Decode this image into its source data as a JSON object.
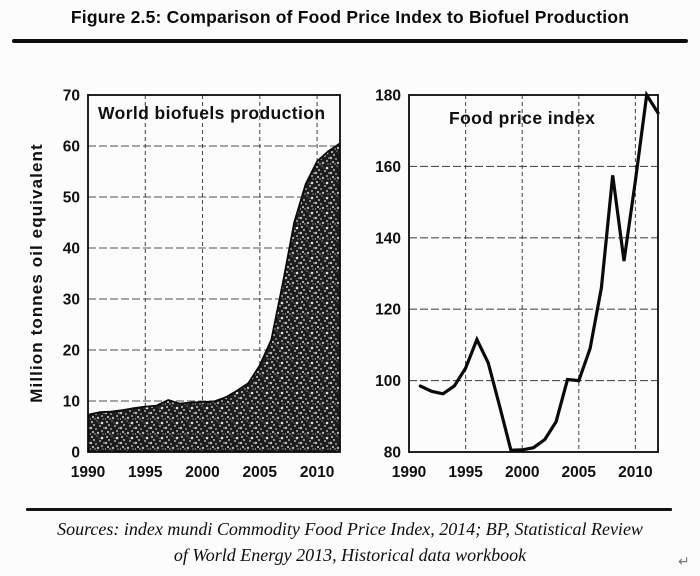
{
  "figure": {
    "title": "Figure 2.5: Comparison of Food Price Index to Biofuel Production",
    "sources_line1": "Sources: index mundi Commodity Food Price Index, 2014; BP, Statistical Review",
    "sources_line2": "of World Energy 2013, Historical data workbook",
    "return_mark": "↵"
  },
  "colors": {
    "ink": "#0d0d0d",
    "paper": "#fcfcfc",
    "area_fill_base": "#1c1c1c"
  },
  "chart_data": [
    {
      "type": "area",
      "title": "World biofuels production",
      "xlabel": "",
      "ylabel": "Million tonnes oil equivalent",
      "xlim": [
        1990,
        2012
      ],
      "ylim": [
        0,
        70
      ],
      "xticks": [
        1990,
        1995,
        2000,
        2005,
        2010
      ],
      "yticks": [
        0,
        10,
        20,
        30,
        40,
        50,
        60,
        70
      ],
      "grid": true,
      "fill_style": "stippled-black",
      "x": [
        1990,
        1991,
        1992,
        1993,
        1994,
        1995,
        1996,
        1997,
        1998,
        1999,
        2000,
        2001,
        2002,
        2003,
        2004,
        2005,
        2006,
        2007,
        2008,
        2009,
        2010,
        2011,
        2012
      ],
      "values": [
        7.3,
        7.8,
        7.9,
        8.2,
        8.6,
        8.9,
        9.1,
        10.2,
        9.5,
        9.7,
        9.8,
        9.9,
        10.7,
        12.0,
        13.5,
        17.0,
        22.0,
        33.0,
        45.0,
        52.5,
        57.0,
        59.0,
        60.5
      ]
    },
    {
      "type": "line",
      "title": "Food price index",
      "xlabel": "",
      "ylabel": "",
      "xlim": [
        1990,
        2012
      ],
      "ylim": [
        80,
        180
      ],
      "xticks": [
        1990,
        1995,
        2000,
        2005,
        2010
      ],
      "yticks": [
        80,
        100,
        120,
        140,
        160,
        180
      ],
      "grid": true,
      "x": [
        1991,
        1992,
        1993,
        1994,
        1995,
        1996,
        1997,
        1998,
        1999,
        2000,
        2001,
        2002,
        2003,
        2004,
        2005,
        2006,
        2007,
        2008,
        2009,
        2010,
        2011,
        2012
      ],
      "values": [
        98.5,
        97.0,
        96.3,
        98.5,
        103.5,
        111.5,
        105.0,
        93.0,
        80.5,
        80.6,
        81.2,
        83.5,
        88.5,
        100.3,
        100.0,
        109.0,
        126.0,
        157.5,
        133.5,
        156.0,
        180.0,
        175.0
      ]
    }
  ]
}
